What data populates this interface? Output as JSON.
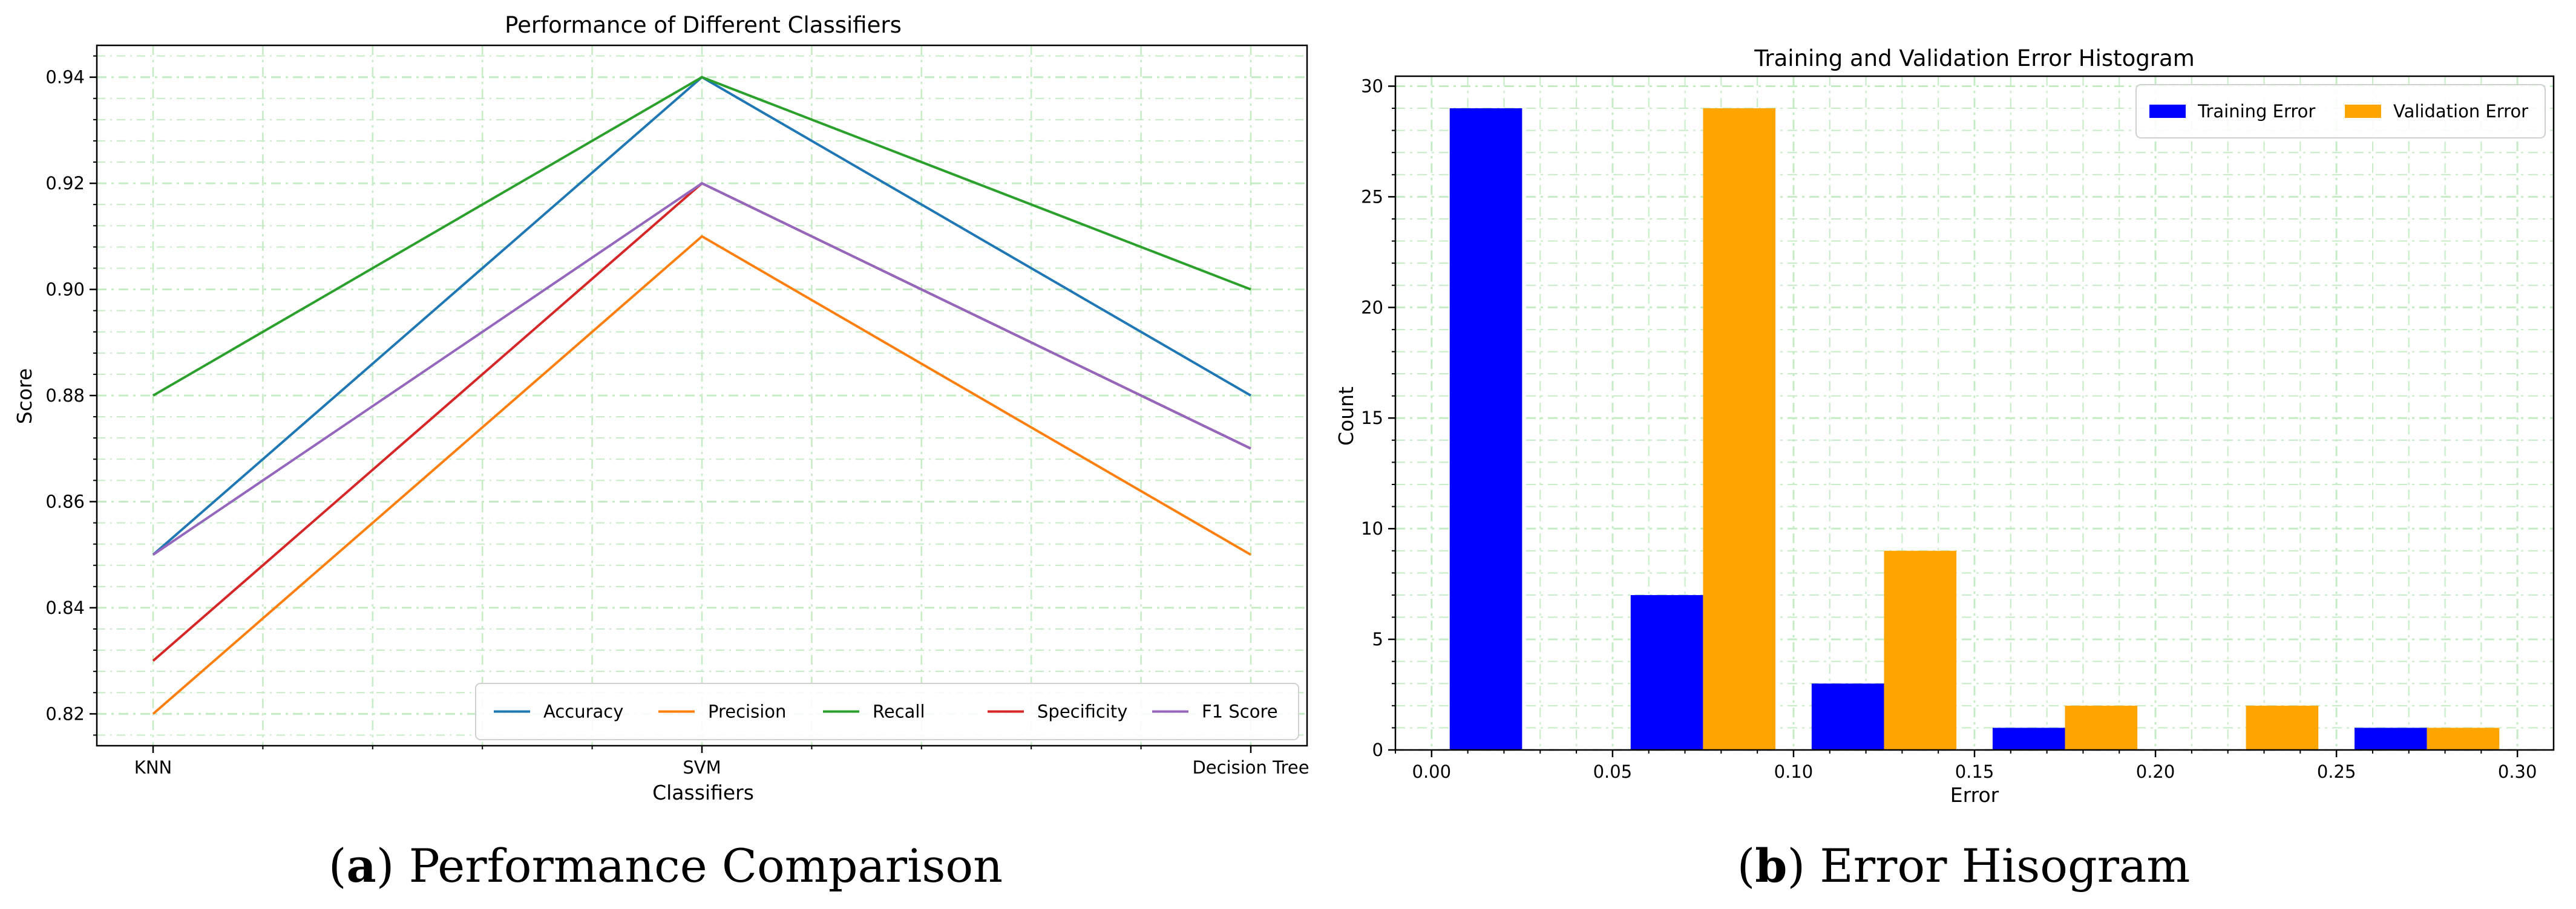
{
  "chart_data": [
    {
      "type": "line",
      "title": "Performance of Different Classifiers",
      "xlabel": "Classifiers",
      "ylabel": "Score",
      "categories": [
        "KNN",
        "SVM",
        "Decision Tree"
      ],
      "ylim": [
        0.814,
        0.946
      ],
      "yticks": [
        "0.82",
        "0.84",
        "0.86",
        "0.88",
        "0.90",
        "0.92",
        "0.94"
      ],
      "grid": true,
      "legend": "lower-right",
      "series": [
        {
          "name": "Accuracy",
          "values": [
            0.85,
            0.94,
            0.88
          ],
          "color": "#1f77b4"
        },
        {
          "name": "Precision",
          "values": [
            0.82,
            0.91,
            0.85
          ],
          "color": "#ff7f0e"
        },
        {
          "name": "Recall",
          "values": [
            0.88,
            0.94,
            0.9
          ],
          "color": "#2ca02c"
        },
        {
          "name": "Specificity",
          "values": [
            0.83,
            0.92,
            0.87
          ],
          "color": "#d62728"
        },
        {
          "name": "F1 Score",
          "values": [
            0.85,
            0.92,
            0.87
          ],
          "color": "#9467bd"
        }
      ],
      "caption_letter": "a",
      "caption_text": "Performance Comparison"
    },
    {
      "type": "bar",
      "title": "Training and Validation Error Histogram",
      "xlabel": "Error",
      "ylabel": "Count",
      "xlim": [
        -0.01,
        0.31
      ],
      "ylim": [
        0,
        30.45
      ],
      "xticks": [
        "0.00",
        "0.05",
        "0.10",
        "0.15",
        "0.20",
        "0.25",
        "0.30"
      ],
      "yticks": [
        "0",
        "5",
        "10",
        "15",
        "20",
        "25",
        "30"
      ],
      "grid": true,
      "legend": "top-right",
      "series": [
        {
          "name": "Training Error",
          "color": "#0000ff",
          "bins": [
            [
              0.005,
              0.025,
              29
            ],
            [
              0.055,
              0.075,
              7
            ],
            [
              0.105,
              0.125,
              3
            ],
            [
              0.155,
              0.175,
              1
            ],
            [
              0.255,
              0.275,
              1
            ]
          ]
        },
        {
          "name": "Validation Error",
          "color": "#ffa500",
          "bins": [
            [
              0.075,
              0.095,
              29
            ],
            [
              0.125,
              0.145,
              9
            ],
            [
              0.175,
              0.195,
              2
            ],
            [
              0.225,
              0.245,
              2
            ],
            [
              0.275,
              0.295,
              1
            ]
          ]
        }
      ],
      "caption_letter": "b",
      "caption_text": "Error Hisogram"
    }
  ]
}
